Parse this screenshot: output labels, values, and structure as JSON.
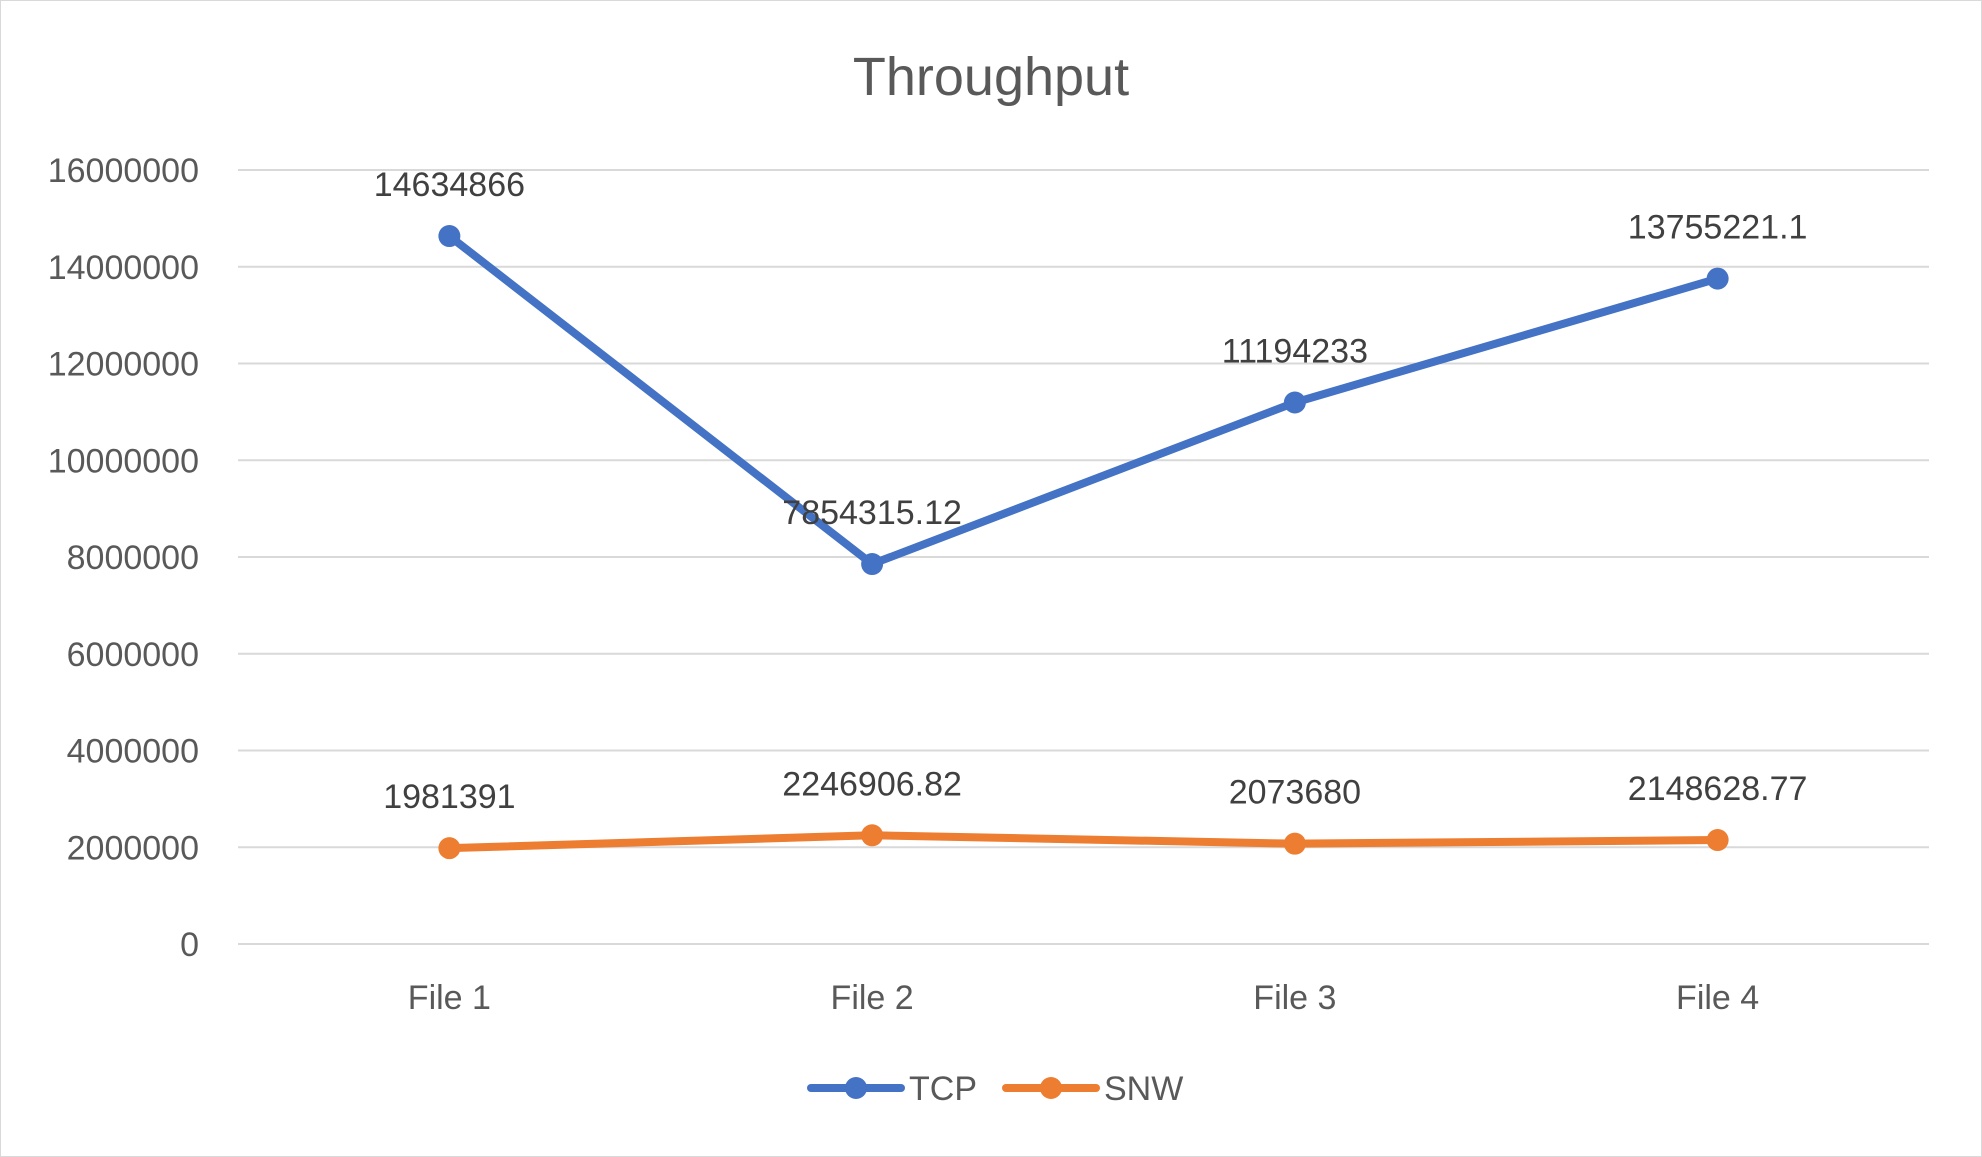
{
  "chart_data": {
    "type": "line",
    "title": "Throughput",
    "xlabel": "",
    "ylabel": "",
    "categories": [
      "File 1",
      "File 2",
      "File 3",
      "File 4"
    ],
    "ylim": [
      0,
      16000000
    ],
    "yticks": [
      0,
      2000000,
      4000000,
      6000000,
      8000000,
      10000000,
      12000000,
      14000000,
      16000000
    ],
    "grid": true,
    "legend_position": "bottom",
    "series": [
      {
        "name": "TCP",
        "color": "#4472c4",
        "values": [
          14634866,
          7854315.12,
          11194233,
          13755221.1
        ],
        "labels": [
          "14634866",
          "7854315.12",
          "11194233",
          "13755221.1"
        ]
      },
      {
        "name": "SNW",
        "color": "#ed7d31",
        "values": [
          1981391,
          2246906.82,
          2073680,
          2148628.77
        ],
        "labels": [
          "1981391",
          "2246906.82",
          "2073680",
          "2148628.77"
        ]
      }
    ]
  }
}
